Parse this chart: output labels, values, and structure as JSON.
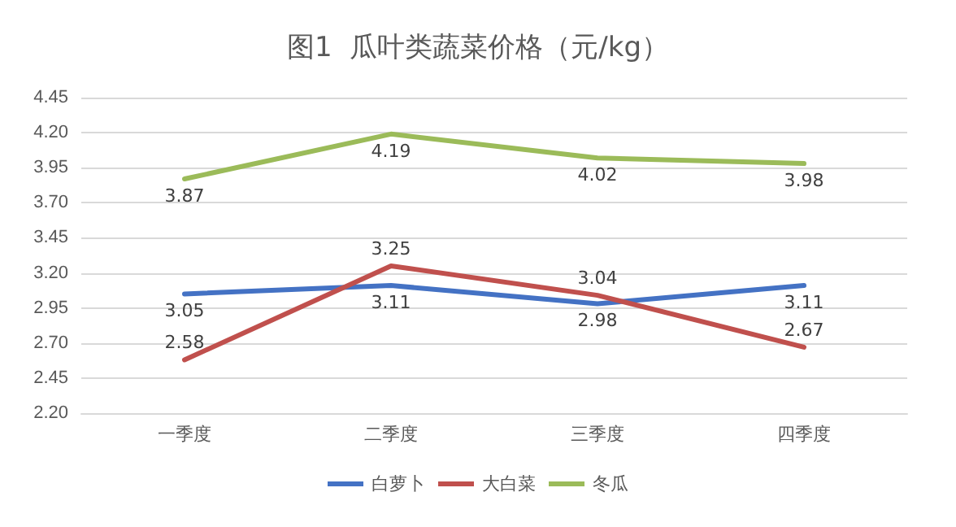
{
  "chart_data": {
    "type": "line",
    "title": "图1  瓜叶类蔬菜价格（元/kg）",
    "categories": [
      "一季度",
      "二季度",
      "三季度",
      "四季度"
    ],
    "series": [
      {
        "name": "白萝卜",
        "color": "#4472c4",
        "values": [
          3.05,
          3.11,
          2.98,
          3.11
        ]
      },
      {
        "name": "大白菜",
        "color": "#c0504d",
        "values": [
          2.58,
          3.25,
          3.04,
          2.67
        ]
      },
      {
        "name": "冬瓜",
        "color": "#9bbb59",
        "values": [
          3.87,
          4.19,
          4.02,
          3.98
        ]
      }
    ],
    "ylim": [
      2.2,
      4.45
    ],
    "yticks": [
      {
        "value": 2.2,
        "label": "2.20"
      },
      2.45,
      {
        "value": 2.7,
        "label": "2.70"
      },
      2.95,
      {
        "value": 3.2,
        "label": "3.20"
      },
      3.45,
      {
        "value": 3.7,
        "label": "3.70"
      },
      3.95,
      {
        "value": 4.2,
        "label": "4.20"
      },
      4.45
    ],
    "grid": "y",
    "legend": "bottom",
    "data_labels": true,
    "marker": "none",
    "line_style": "solid"
  }
}
